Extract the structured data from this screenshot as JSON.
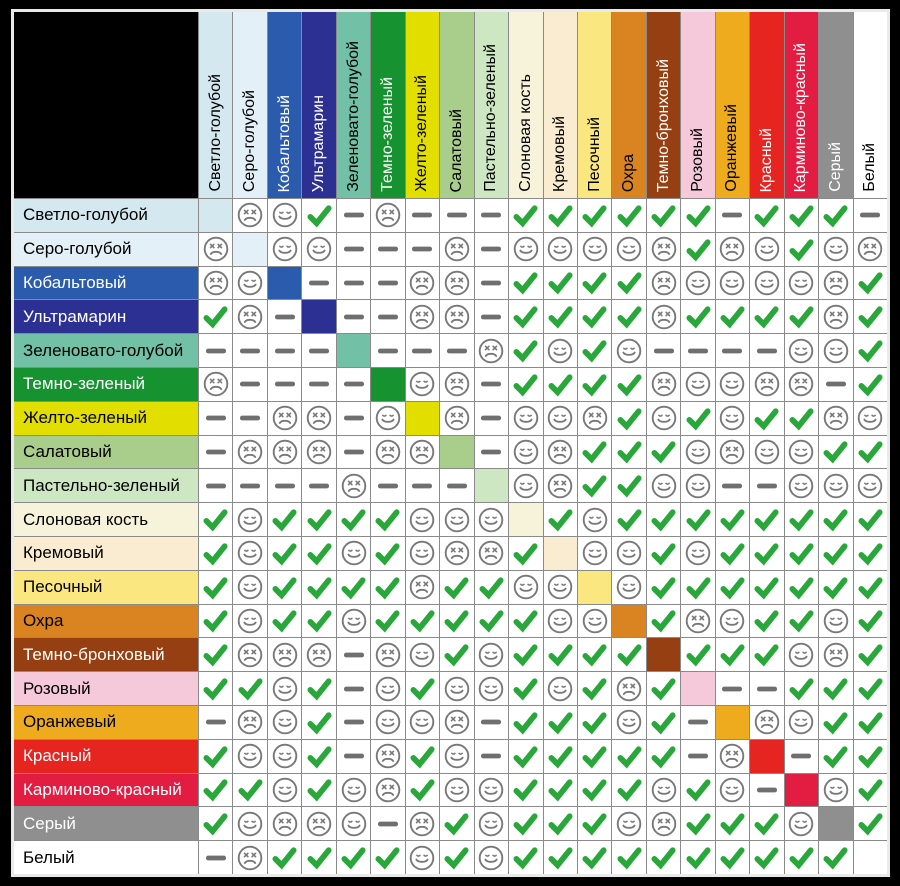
{
  "page": {
    "background": "#000000",
    "table_frame": "#eaeaea",
    "grid_line": "#8a8a8a",
    "cell_background": "#ffffff"
  },
  "symbols": {
    "C": {
      "icon": "check-icon",
      "color": "#2aa73b"
    },
    "S": {
      "icon": "smiley-icon",
      "color": "#787878"
    },
    "F": {
      "icon": "frowny-icon",
      "color": "#787878"
    },
    "D": {
      "icon": "dash-icon",
      "color": "#6f6f6f"
    },
    "X": {
      "icon": "color-swatch"
    }
  },
  "palette": [
    {
      "name": "Светло-голубой",
      "hex": "#d4e8ef",
      "text": "#000000"
    },
    {
      "name": "Серо-голубой",
      "hex": "#e4f0f8",
      "text": "#000000"
    },
    {
      "name": "Кобальтовый",
      "hex": "#2a5bad",
      "text": "#ffffff"
    },
    {
      "name": "Ультрамарин",
      "hex": "#2b3092",
      "text": "#ffffff"
    },
    {
      "name": "Зеленовато-голубой",
      "hex": "#72c0a5",
      "text": "#000000"
    },
    {
      "name": "Темно-зеленый",
      "hex": "#169230",
      "text": "#ffffff"
    },
    {
      "name": "Желто-зеленый",
      "hex": "#e2df00",
      "text": "#000000"
    },
    {
      "name": "Салатовый",
      "hex": "#a9cd8a",
      "text": "#000000"
    },
    {
      "name": "Пастельно-зеленый",
      "hex": "#cee7c3",
      "text": "#000000"
    },
    {
      "name": "Слоновая кость",
      "hex": "#f6f3da",
      "text": "#000000"
    },
    {
      "name": "Кремовый",
      "hex": "#faecd0",
      "text": "#000000"
    },
    {
      "name": "Песочный",
      "hex": "#fae77f",
      "text": "#000000"
    },
    {
      "name": "Охра",
      "hex": "#d98420",
      "text": "#000000"
    },
    {
      "name": "Темно-бронховый",
      "hex": "#963f12",
      "text": "#ffffff"
    },
    {
      "name": "Розовый",
      "hex": "#f5c9da",
      "text": "#000000"
    },
    {
      "name": "Оранжевый",
      "hex": "#eeab1e",
      "text": "#000000"
    },
    {
      "name": "Красный",
      "hex": "#e62420",
      "text": "#ffffff"
    },
    {
      "name": "Карминово-красный",
      "hex": "#e31c42",
      "text": "#ffffff"
    },
    {
      "name": "Серый",
      "hex": "#8f8f8f",
      "text": "#ffffff"
    },
    {
      "name": "Белый",
      "hex": "#ffffff",
      "text": "#000000"
    }
  ],
  "chart_data": {
    "type": "table",
    "title": "",
    "row_labels": [
      "Светло-голубой",
      "Серо-голубой",
      "Кобальтовый",
      "Ультрамарин",
      "Зеленовато-голубой",
      "Темно-зеленый",
      "Желто-зеленый",
      "Салатовый",
      "Пастельно-зеленый",
      "Слоновая кость",
      "Кремовый",
      "Песочный",
      "Охра",
      "Темно-бронховый",
      "Розовый",
      "Оранжевый",
      "Красный",
      "Карминово-красный",
      "Серый",
      "Белый"
    ],
    "col_labels": [
      "Светло-голубой",
      "Серо-голубой",
      "Кобальтовый",
      "Ультрамарин",
      "Зеленовато-голубой",
      "Темно-зеленый",
      "Желто-зеленый",
      "Салатовый",
      "Пастельно-зеленый",
      "Слоновая кость",
      "Кремовый",
      "Песочный",
      "Охра",
      "Темно-бронховый",
      "Розовый",
      "Оранжевый",
      "Красный",
      "Карминово-красный",
      "Серый",
      "Белый"
    ],
    "cell_symbols": {
      "C": "green-check",
      "S": "smiley-face",
      "F": "sad-face",
      "D": "dash",
      "X": "diagonal-color-swatch"
    },
    "matrix": [
      "XFSCDFDDDCCCCCCDCCCD",
      "FXSSDDDFDSSSSFCFSCSF",
      "FSXDDDFFDCCCCFSSSSFC",
      "CFDXDDFFDCCCCFCCCCFC",
      "DDDDXDDDFCSCSDDDDSSC",
      "FDDDDXSFDCCCCFSSFFDC",
      "DDFFDSXFDSSFCSCSCCFS",
      "DFFFDFFXDSFCCCSFSSCC",
      "DDDDFDDDXSFCCSSDDSSS",
      "CSCCCCSSSXCSCCCCCCCC",
      "CSCCSCSFFCXSSCSCCCCC",
      "CSCCCCFCCSSXSCCCCCCC",
      "CSCCSCCCCCSSXCFSCCSC",
      "CFFFDFSCSCCCCXCCCSFC",
      "CCSCDSCSSCSCFCXDDCCC",
      "DFSCDSSFDCCCSCDXFSCC",
      "CSSCDFCSDCCCCCDFXDCC",
      "CCSCSFCSSCCCCSCSDXSC",
      "CSFFSDFCSCCCSFCCCSXC",
      "DFCCCCSCSCCCCCCCCCCX"
    ]
  }
}
